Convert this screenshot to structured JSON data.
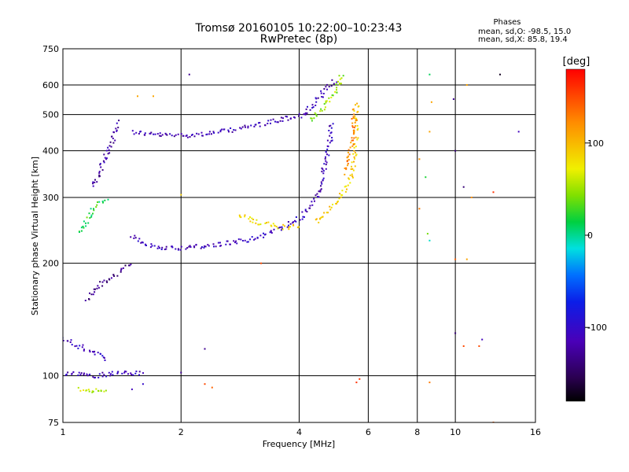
{
  "chart_data": {
    "type": "scatter",
    "title": "Tromsø 20160105 10:22:00–10:23:43",
    "subtitle": "RwPretec (8p)",
    "xlabel": "Frequency [MHz]",
    "ylabel": "Stationary phase Virtual Height [km]",
    "x_scale": "log",
    "y_scale": "log",
    "xlim": [
      1,
      16
    ],
    "ylim": [
      75,
      750
    ],
    "x_ticks": [
      1,
      2,
      4,
      6,
      8,
      10,
      16
    ],
    "y_ticks": [
      75,
      100,
      200,
      300,
      400,
      500,
      600,
      750
    ],
    "grid": true,
    "phase_stats": {
      "heading": "Phases",
      "o_line": "mean, sd,O:  -98.5, 15.0",
      "x_line": "mean, sd,X:  85.8, 19.4"
    },
    "colorbar": {
      "label": "[deg]",
      "range": [
        -180,
        180
      ],
      "ticks": [
        100,
        0,
        -100
      ],
      "tick_labels": [
        "100",
        "0",
        "-100"
      ]
    },
    "traces": [
      {
        "x": [
          1.5,
          1.6,
          1.8,
          2.0,
          2.2,
          2.5,
          2.8,
          3.1,
          3.4,
          3.7,
          4.0,
          4.2,
          4.4,
          4.6,
          4.8,
          5.0
        ],
        "y": [
          450,
          445,
          440,
          440,
          442,
          448,
          458,
          468,
          478,
          488,
          495,
          510,
          540,
          570,
          600,
          620
        ],
        "phase": -115
      },
      {
        "x": [
          1.5,
          1.6,
          1.8,
          2.0,
          2.3,
          2.6,
          3.0,
          3.4,
          3.8,
          4.1,
          4.3,
          4.5,
          4.6,
          4.7,
          4.8,
          4.85
        ],
        "y": [
          235,
          225,
          220,
          220,
          222,
          226,
          232,
          242,
          255,
          268,
          285,
          310,
          340,
          380,
          430,
          480
        ],
        "phase": -110
      },
      {
        "x": [
          4.3,
          4.5,
          4.7,
          4.9,
          5.05,
          5.1,
          5.15
        ],
        "y": [
          480,
          510,
          540,
          570,
          600,
          620,
          640
        ],
        "phase": 50
      },
      {
        "x": [
          4.4,
          4.6,
          4.8,
          5.0,
          5.2,
          5.35,
          5.5,
          5.55,
          5.6,
          5.6
        ],
        "y": [
          258,
          268,
          280,
          295,
          310,
          330,
          360,
          400,
          460,
          540
        ],
        "phase": 90
      },
      {
        "x": [
          2.8,
          3.0,
          3.2,
          3.4,
          3.6,
          3.8,
          4.0
        ],
        "y": [
          270,
          262,
          256,
          252,
          250,
          250,
          252
        ],
        "phase": 85
      },
      {
        "x": [
          5.25,
          5.35,
          5.45,
          5.5,
          5.55
        ],
        "y": [
          350,
          380,
          420,
          470,
          520
        ],
        "phase": 125
      },
      {
        "x": [
          1.15,
          1.2,
          1.25,
          1.3,
          1.35,
          1.4,
          1.45,
          1.5
        ],
        "y": [
          160,
          170,
          175,
          180,
          185,
          190,
          195,
          200
        ],
        "phase": -135
      },
      {
        "x": [
          1.2,
          1.25,
          1.3,
          1.35,
          1.4
        ],
        "y": [
          320,
          360,
          400,
          440,
          480
        ],
        "phase": -120
      },
      {
        "x": [
          1.0,
          1.1,
          1.2,
          1.3
        ],
        "y": [
          125,
          120,
          115,
          110
        ],
        "phase": -105
      },
      {
        "x": [
          1.02,
          1.1,
          1.2,
          1.3,
          1.45,
          1.6
        ],
        "y": [
          102,
          101,
          100,
          101,
          102,
          101
        ],
        "phase": -110
      },
      {
        "x": [
          1.1,
          1.15,
          1.2,
          1.3
        ],
        "y": [
          240,
          260,
          280,
          300
        ],
        "phase": 20
      },
      {
        "x": [
          1.1,
          1.2,
          1.3
        ],
        "y": [
          92,
          91,
          90
        ],
        "phase": 60
      }
    ],
    "scatter_points": [
      {
        "x": 8.6,
        "y": 640,
        "phase": 10
      },
      {
        "x": 13.0,
        "y": 640,
        "phase": -170
      },
      {
        "x": 10.7,
        "y": 600,
        "phase": 110
      },
      {
        "x": 8.7,
        "y": 540,
        "phase": 110
      },
      {
        "x": 9.9,
        "y": 550,
        "phase": -130
      },
      {
        "x": 8.6,
        "y": 450,
        "phase": 110
      },
      {
        "x": 14.5,
        "y": 450,
        "phase": -110
      },
      {
        "x": 10.0,
        "y": 400,
        "phase": -140
      },
      {
        "x": 8.1,
        "y": 380,
        "phase": 120
      },
      {
        "x": 8.4,
        "y": 340,
        "phase": 20
      },
      {
        "x": 10.5,
        "y": 320,
        "phase": -140
      },
      {
        "x": 12.5,
        "y": 310,
        "phase": 160
      },
      {
        "x": 11.0,
        "y": 300,
        "phase": 120
      },
      {
        "x": 8.1,
        "y": 280,
        "phase": 130
      },
      {
        "x": 8.5,
        "y": 240,
        "phase": 40
      },
      {
        "x": 8.6,
        "y": 230,
        "phase": -10
      },
      {
        "x": 10.0,
        "y": 205,
        "phase": 140
      },
      {
        "x": 10.7,
        "y": 205,
        "phase": 110
      },
      {
        "x": 10.0,
        "y": 130,
        "phase": -140
      },
      {
        "x": 10.5,
        "y": 120,
        "phase": 150
      },
      {
        "x": 11.5,
        "y": 120,
        "phase": 150
      },
      {
        "x": 11.7,
        "y": 125,
        "phase": -110
      },
      {
        "x": 8.6,
        "y": 96,
        "phase": 130
      },
      {
        "x": 5.7,
        "y": 98,
        "phase": 160
      },
      {
        "x": 5.6,
        "y": 96,
        "phase": 160
      },
      {
        "x": 12.5,
        "y": 75,
        "phase": 140
      },
      {
        "x": 2.1,
        "y": 640,
        "phase": -130
      },
      {
        "x": 2.3,
        "y": 118,
        "phase": -130
      },
      {
        "x": 2.0,
        "y": 102,
        "phase": -130
      },
      {
        "x": 2.4,
        "y": 93,
        "phase": 140
      },
      {
        "x": 2.3,
        "y": 95,
        "phase": 150
      },
      {
        "x": 3.2,
        "y": 200,
        "phase": 150
      },
      {
        "x": 2.0,
        "y": 305,
        "phase": 90
      },
      {
        "x": 1.7,
        "y": 560,
        "phase": 110
      },
      {
        "x": 1.55,
        "y": 560,
        "phase": 110
      },
      {
        "x": 1.6,
        "y": 95,
        "phase": -100
      },
      {
        "x": 1.5,
        "y": 92,
        "phase": -110
      }
    ]
  }
}
